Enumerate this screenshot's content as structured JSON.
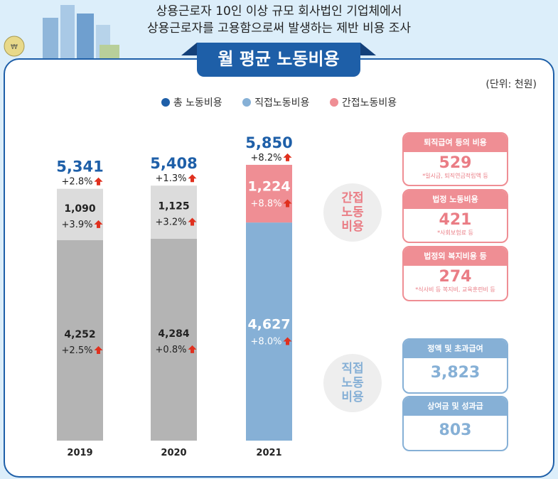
{
  "header": {
    "line1": "상용근로자 10인 이상 규모 회사법인 기업체에서",
    "line2": "상용근로자를 고용함으로써 발생하는 제반 비용 조사"
  },
  "title": "월 평균 노동비용",
  "unit": "(단위: 천원)",
  "legend": [
    {
      "label": "총 노동비용",
      "color": "#1e5fa8"
    },
    {
      "label": "직접노동비용",
      "color": "#86b0d6"
    },
    {
      "label": "간접노동비용",
      "color": "#ef8e94"
    }
  ],
  "chart_data": {
    "type": "bar",
    "stacked": true,
    "categories": [
      "2019",
      "2020",
      "2021"
    ],
    "total": {
      "name": "총 노동비용",
      "values": [
        5341,
        5408,
        5850
      ],
      "change": [
        "+2.8%",
        "+1.3%",
        "+8.2%"
      ]
    },
    "series": [
      {
        "name": "직접노동비용",
        "values": [
          4252,
          4284,
          4627
        ],
        "change": [
          "+2.5%",
          "+0.8%",
          "+8.0%"
        ]
      },
      {
        "name": "간접노동비용",
        "values": [
          1090,
          1125,
          1224
        ],
        "change": [
          "+3.9%",
          "+3.2%",
          "+8.8%"
        ]
      }
    ],
    "colors": {
      "past_direct": "#b4b4b4",
      "past_indirect": "#dcdcdc",
      "direct": "#86b0d6",
      "indirect": "#ef8e94",
      "total_label": "#1e5fa8",
      "up_arrow": "#e0301e"
    }
  },
  "bubbles": {
    "indirect": "간접\n노동\n비용",
    "direct": "직접\n노동\n비용"
  },
  "indirect_breakdown": [
    {
      "label": "퇴직급여 등의 비용",
      "value": "529",
      "note": "*일시금, 퇴직연금적립액 등"
    },
    {
      "label": "법정 노동비용",
      "value": "421",
      "note": "*사회보험료 등"
    },
    {
      "label": "법정외 복지비용 등",
      "value": "274",
      "note": "*식사비 등 복지비, 교육훈련비 등"
    }
  ],
  "direct_breakdown": [
    {
      "label": "정액 및 초과급여",
      "value": "3,823"
    },
    {
      "label": "상여금 및 성과급",
      "value": "803"
    }
  ]
}
